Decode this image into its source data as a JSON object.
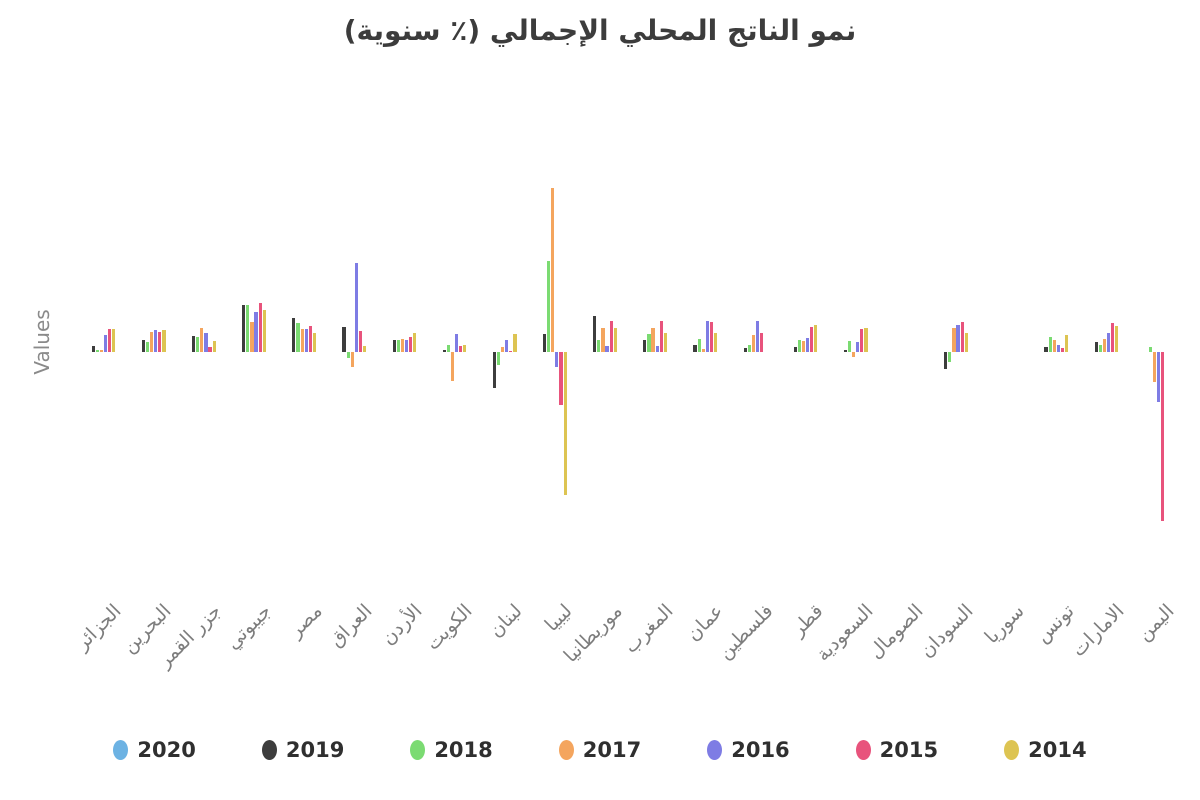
{
  "chart_data": {
    "type": "bar",
    "title": "نمو الناتج المحلي الإجمالي (٪ سنوية)",
    "ylabel": "Values",
    "xlabel": "",
    "ylim": [
      -30,
      30
    ],
    "grid": false,
    "y_ticks_visible": false,
    "legend_position": "bottom",
    "x_label_rotation_deg": 45,
    "categories": [
      "الجزائر",
      "البحرين",
      "جزر القمر",
      "جيبوتي",
      "مصر",
      "العراق",
      "الأردن",
      "الكويت",
      "لبنان",
      "ليبيا",
      "موريطانيا",
      "المغرب",
      "عمان",
      "فلسطين",
      "قطر",
      "السعودية",
      "الصومال",
      "السودان",
      "سوريا",
      "تونس",
      "الامارات",
      "اليمن"
    ],
    "series": [
      {
        "name": "2020",
        "color": "#6cb2e3",
        "values": [
          null,
          null,
          null,
          null,
          null,
          null,
          null,
          null,
          null,
          null,
          null,
          null,
          null,
          null,
          null,
          null,
          null,
          null,
          null,
          null,
          null,
          null
        ]
      },
      {
        "name": "2019",
        "color": "#3d3d3d",
        "values": [
          1.0,
          1.9,
          2.6,
          7.6,
          5.6,
          4.0,
          2.0,
          0.4,
          -5.8,
          2.9,
          5.9,
          2.0,
          1.1,
          0.6,
          0.8,
          0.3,
          null,
          -2.7,
          null,
          0.8,
          1.6,
          null
        ]
      },
      {
        "name": "2018",
        "color": "#7bdb72",
        "values": [
          0.4,
          1.6,
          2.4,
          7.7,
          4.7,
          -1.0,
          1.9,
          1.2,
          -2.1,
          14.8,
          2.0,
          2.9,
          2.1,
          1.1,
          1.9,
          1.8,
          null,
          -1.6,
          null,
          2.4,
          1.1,
          0.8
        ]
      },
      {
        "name": "2017",
        "color": "#f4a55e",
        "values": [
          0.3,
          3.2,
          3.9,
          4.8,
          3.7,
          -2.5,
          2.1,
          -4.7,
          0.8,
          26.7,
          3.9,
          3.9,
          0.5,
          2.7,
          1.8,
          -0.8,
          null,
          3.9,
          null,
          1.9,
          2.1,
          -4.8
        ]
      },
      {
        "name": "2016",
        "color": "#7e7ce4",
        "values": [
          2.8,
          3.5,
          3.1,
          6.5,
          3.7,
          14.5,
          2.0,
          2.9,
          1.9,
          -2.4,
          1.0,
          1.0,
          5.0,
          5.0,
          2.3,
          1.6,
          null,
          4.4,
          null,
          1.1,
          3.1,
          -8.2
        ]
      },
      {
        "name": "2015",
        "color": "#e8537c",
        "values": [
          3.7,
          3.2,
          0.8,
          7.9,
          4.2,
          3.4,
          2.4,
          1.0,
          0.2,
          -8.6,
          5.0,
          5.0,
          4.8,
          3.1,
          4.0,
          3.7,
          null,
          4.8,
          null,
          0.6,
          4.7,
          -27.5
        ]
      },
      {
        "name": "2014",
        "color": "#ddc452",
        "values": [
          3.7,
          3.5,
          1.8,
          6.8,
          3.1,
          1.0,
          3.1,
          1.1,
          2.9,
          -23.2,
          3.9,
          3.1,
          3.1,
          null,
          4.4,
          3.9,
          null,
          3.1,
          null,
          2.7,
          4.2,
          null
        ]
      }
    ]
  }
}
